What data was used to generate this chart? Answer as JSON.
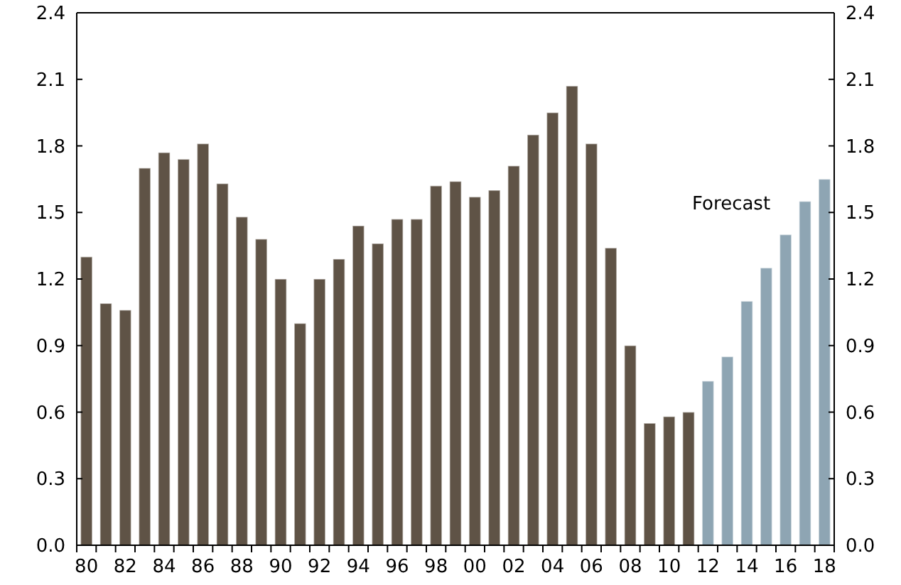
{
  "chart_data": {
    "type": "bar",
    "stacked": true,
    "categories": [
      "80",
      null,
      "82",
      null,
      "84",
      null,
      "86",
      null,
      "88",
      null,
      "90",
      null,
      "92",
      null,
      "94",
      null,
      "96",
      null,
      "98",
      null,
      "00",
      null,
      "02",
      null,
      "04",
      null,
      "06",
      null,
      "08",
      null,
      "10",
      null,
      "12",
      null,
      "14",
      null,
      "16",
      null,
      "18"
    ],
    "series": [
      {
        "color": "#5f5346",
        "values": [
          1.3,
          1.09,
          1.06,
          1.7,
          1.77,
          1.74,
          1.81,
          1.63,
          1.48,
          1.38,
          1.2,
          1.0,
          1.2,
          1.29,
          1.44,
          1.36,
          1.47,
          1.47,
          1.62,
          1.64,
          1.57,
          1.6,
          1.71,
          1.85,
          1.95,
          2.07,
          1.81,
          1.34,
          0.9,
          0.55,
          0.58,
          0.6,
          null,
          null,
          null,
          null,
          null,
          null,
          null
        ]
      },
      {
        "color": "#8ea5b3",
        "values": [
          null,
          null,
          null,
          null,
          null,
          null,
          null,
          null,
          null,
          null,
          null,
          null,
          null,
          null,
          null,
          null,
          null,
          null,
          null,
          null,
          null,
          null,
          null,
          null,
          null,
          null,
          null,
          null,
          null,
          null,
          null,
          null,
          0.74,
          0.85,
          1.1,
          1.25,
          1.4,
          1.55,
          1.65
        ]
      }
    ],
    "ylim": [
      0,
      2.4
    ],
    "yticks": [
      {
        "value": 0,
        "label": "0.0"
      },
      {
        "value": 0.3,
        "label": "0.3"
      },
      {
        "value": 0.6,
        "label": "0.6"
      },
      {
        "value": 0.9,
        "label": "0.9"
      },
      {
        "value": 1.2,
        "label": "1.2"
      },
      {
        "value": 1.5,
        "label": "1.5"
      },
      {
        "value": 1.8,
        "label": "1.8"
      },
      {
        "value": 2.1,
        "label": "2.1"
      },
      {
        "value": 2.4,
        "label": "2.4"
      }
    ],
    "y2lim": [
      0,
      2.4
    ],
    "y2ticks": [
      {
        "value": 0,
        "label": "0.0"
      },
      {
        "value": 0.3,
        "label": "0.3"
      },
      {
        "value": 0.6,
        "label": "0.6"
      },
      {
        "value": 0.9,
        "label": "0.9"
      },
      {
        "value": 1.2,
        "label": "1.2"
      },
      {
        "value": 1.5,
        "label": "1.5"
      },
      {
        "value": 1.8,
        "label": "1.8"
      },
      {
        "value": 2.1,
        "label": "2.1"
      },
      {
        "value": 2.4,
        "label": "2.4"
      }
    ],
    "annotations": [
      "Forecast"
    ],
    "grid": false
  }
}
